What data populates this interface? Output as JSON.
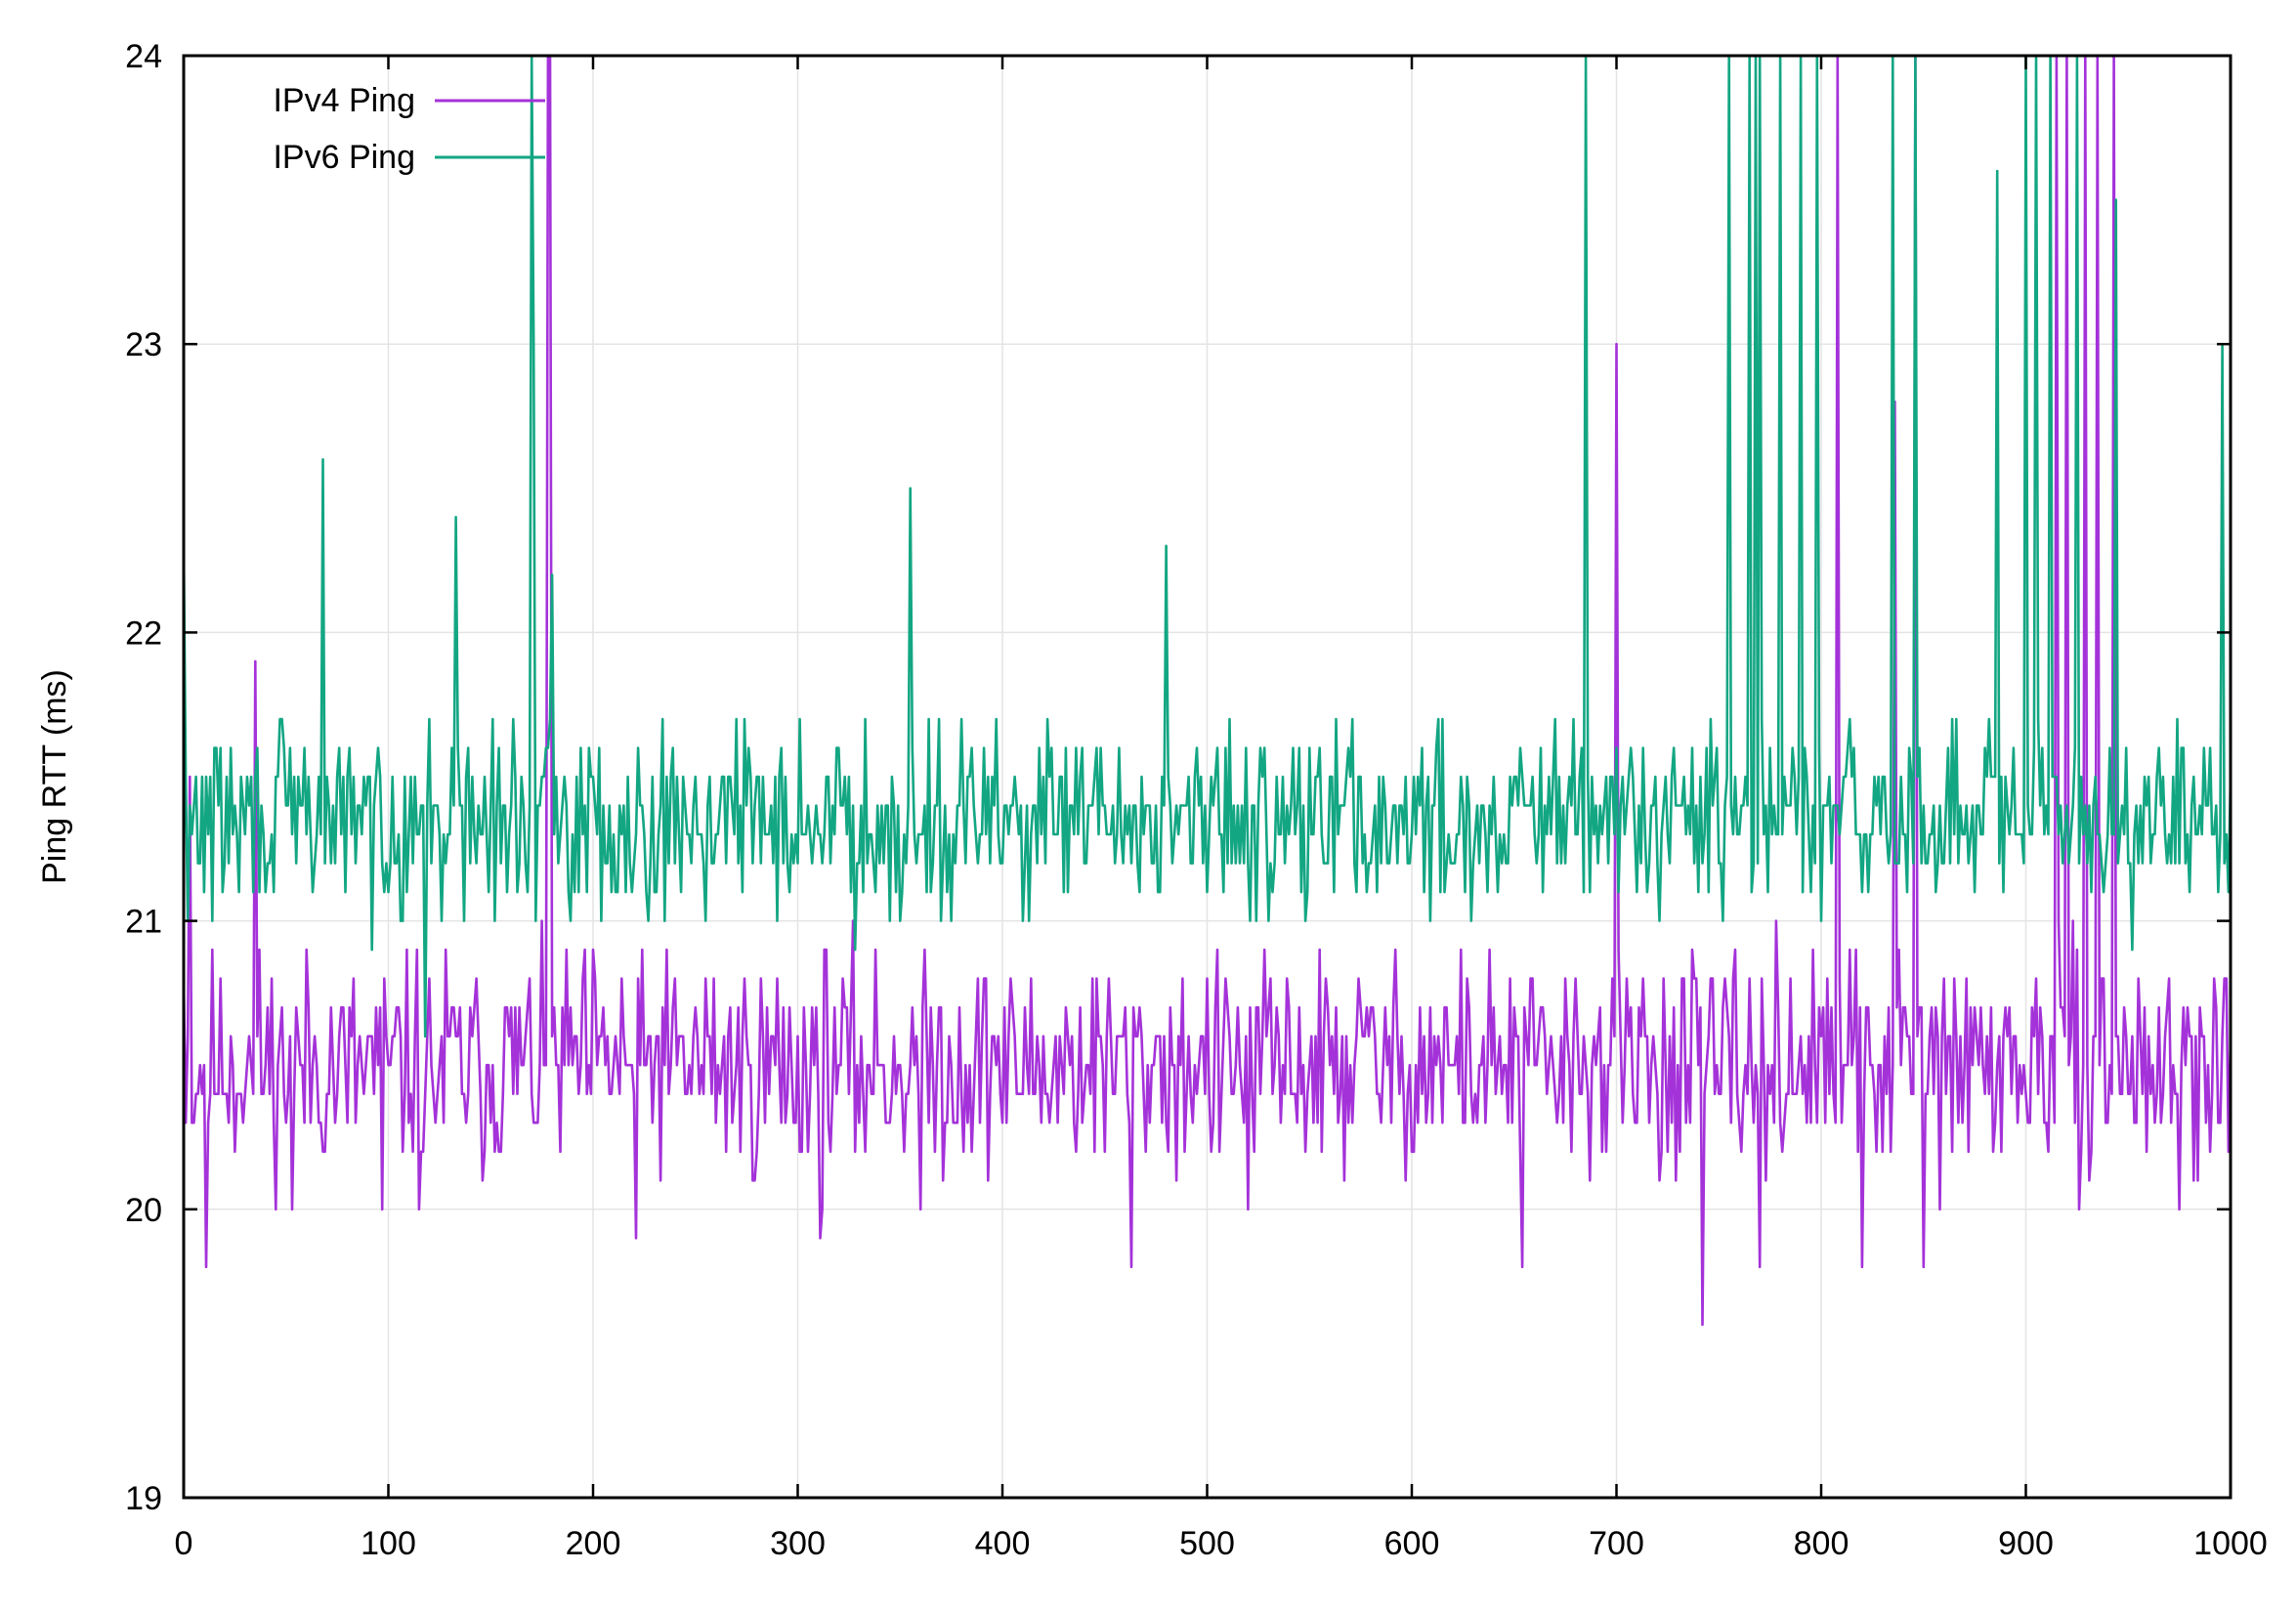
{
  "chart_data": {
    "type": "line",
    "title": "",
    "xlabel": "",
    "ylabel": "Ping RTT (ms)",
    "xlim": [
      0,
      1000
    ],
    "ylim": [
      19,
      24
    ],
    "xticks": [
      0,
      100,
      200,
      300,
      400,
      500,
      600,
      700,
      800,
      900,
      1000
    ],
    "yticks": [
      19,
      20,
      21,
      22,
      23,
      24
    ],
    "grid": true,
    "legend_position": "top-left",
    "series": [
      {
        "name": "IPv4 Ping",
        "color": "#a432d9",
        "baseline": 20.5,
        "noise": 0.35,
        "seed": 11,
        "points": [
          [
            0,
            20.8
          ],
          [
            3,
            21.5
          ],
          [
            5,
            20.3
          ],
          [
            11,
            19.8
          ],
          [
            35,
            21.9
          ],
          [
            53,
            20.0
          ],
          [
            97,
            20.0
          ],
          [
            115,
            20.0
          ],
          [
            178,
            24.0
          ],
          [
            179,
            24.0
          ],
          [
            221,
            19.9
          ],
          [
            311,
            19.9
          ],
          [
            360,
            20.0
          ],
          [
            463,
            19.8
          ],
          [
            520,
            20.0
          ],
          [
            654,
            19.8
          ],
          [
            700,
            23.0
          ],
          [
            742,
            19.6
          ],
          [
            770,
            19.8
          ],
          [
            808,
            24.0
          ],
          [
            820,
            19.8
          ],
          [
            836,
            22.8
          ],
          [
            846,
            24.0
          ],
          [
            850,
            19.8
          ],
          [
            915,
            24.0
          ],
          [
            920,
            24.0
          ],
          [
            929,
            24.0
          ],
          [
            935,
            24.0
          ],
          [
            943,
            24.0
          ],
          [
            975,
            20.0
          ]
        ]
      },
      {
        "name": "IPv6 Ping",
        "color": "#13a683",
        "baseline": 21.35,
        "noise": 0.3,
        "seed": 29,
        "points": [
          [
            0,
            22.3
          ],
          [
            2,
            21.0
          ],
          [
            68,
            22.6
          ],
          [
            118,
            20.6
          ],
          [
            133,
            22.4
          ],
          [
            170,
            24.0
          ],
          [
            171,
            23.0
          ],
          [
            180,
            22.2
          ],
          [
            355,
            22.5
          ],
          [
            480,
            22.3
          ],
          [
            685,
            24.0
          ],
          [
            700,
            21.6
          ],
          [
            755,
            24.0
          ],
          [
            765,
            24.0
          ],
          [
            768,
            24.0
          ],
          [
            770,
            24.0
          ],
          [
            780,
            24.0
          ],
          [
            790,
            24.0
          ],
          [
            798,
            24.0
          ],
          [
            835,
            24.0
          ],
          [
            846,
            24.0
          ],
          [
            886,
            23.6
          ],
          [
            900,
            24.0
          ],
          [
            905,
            24.0
          ],
          [
            912,
            24.0
          ],
          [
            925,
            24.0
          ],
          [
            944,
            23.5
          ],
          [
            996,
            23.0
          ]
        ]
      }
    ]
  }
}
